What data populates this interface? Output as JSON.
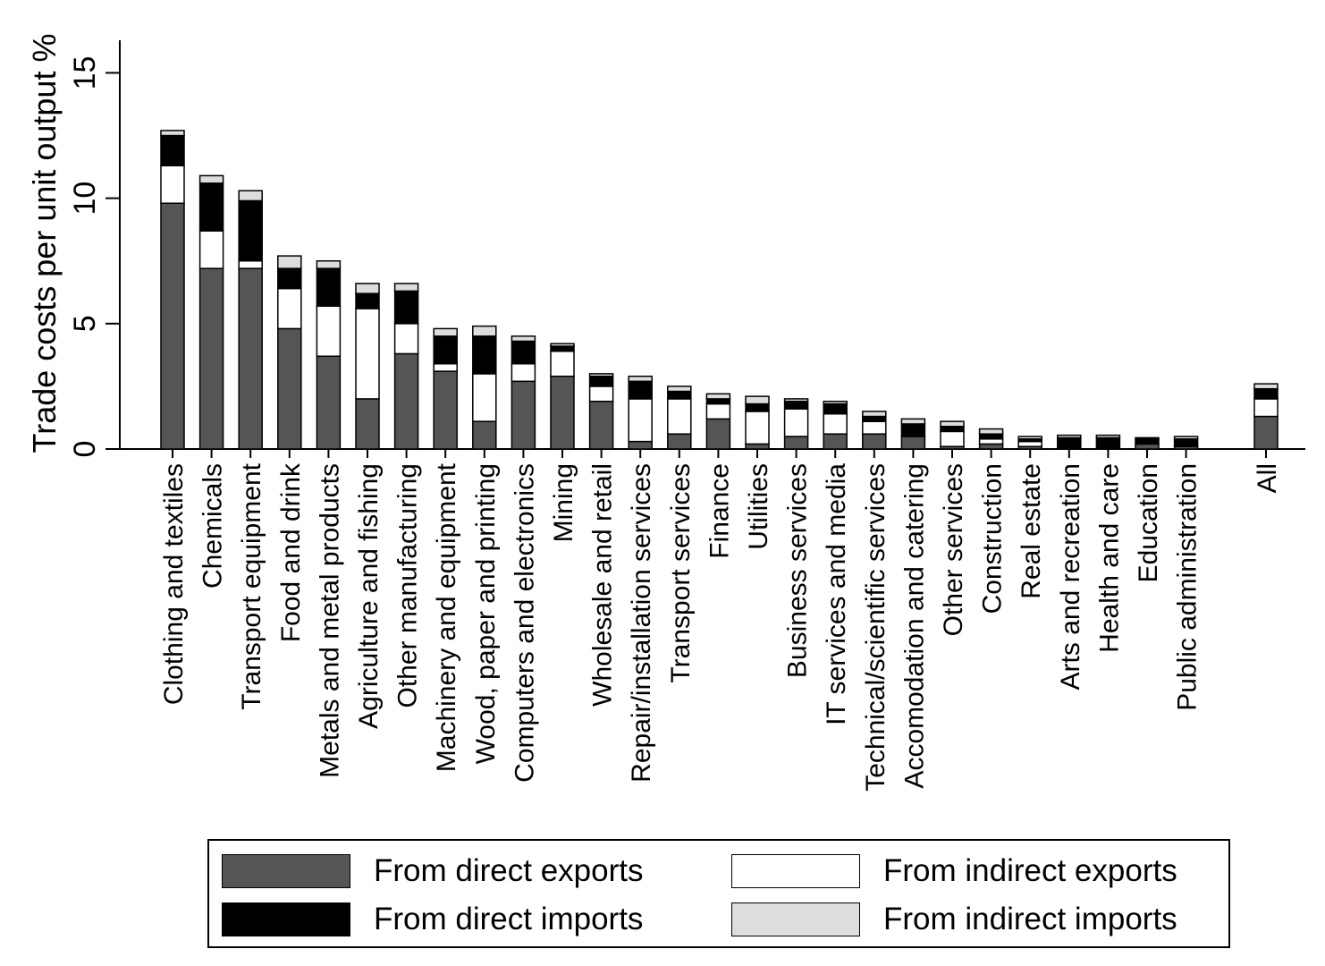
{
  "chart_data": {
    "type": "bar",
    "stacked": true,
    "ylabel": "Trade costs per unit output %",
    "xlabel": "",
    "ylim": [
      0,
      16.3
    ],
    "yticks": [
      0,
      5,
      10,
      15
    ],
    "grid": false,
    "legend_position": "bottom",
    "categories": [
      "Clothing and textiles",
      "Chemicals",
      "Transport equipment",
      "Food and drink",
      "Metals and metal products",
      "Agriculture and fishing",
      "Other manufacturing",
      "Machinery and equipment",
      "Wood, paper and printing",
      "Computers and electronics",
      "Mining",
      "Wholesale and retail",
      "Repair/installation services",
      "Transport services",
      "Finance",
      "Utilities",
      "Business services",
      "IT services and media",
      "Technical/scientific services",
      "Accomodation and catering",
      "Other services",
      "Construction",
      "Real estate",
      "Arts and recreation",
      "Health and care",
      "Education",
      "Public administration",
      "All"
    ],
    "series": [
      {
        "name": "From direct exports",
        "color": "#555555",
        "values": [
          9.8,
          7.2,
          7.2,
          4.8,
          3.7,
          2.0,
          3.8,
          3.1,
          1.1,
          2.7,
          2.9,
          1.9,
          0.3,
          0.6,
          1.2,
          0.2,
          0.5,
          0.6,
          0.6,
          0.5,
          0.1,
          0.2,
          0.1,
          0.05,
          0.05,
          0.2,
          0.1,
          1.3
        ]
      },
      {
        "name": "From indirect exports",
        "color": "#ffffff",
        "values": [
          1.5,
          1.5,
          0.3,
          1.6,
          2.0,
          3.6,
          1.2,
          0.3,
          1.9,
          0.7,
          1.0,
          0.6,
          1.7,
          1.4,
          0.6,
          1.3,
          1.1,
          0.8,
          0.5,
          0.0,
          0.6,
          0.2,
          0.2,
          0.0,
          0.0,
          0.0,
          0.0,
          0.7
        ]
      },
      {
        "name": "From direct imports",
        "color": "#000000",
        "values": [
          1.2,
          1.9,
          2.4,
          0.8,
          1.5,
          0.6,
          1.3,
          1.1,
          1.5,
          0.9,
          0.2,
          0.4,
          0.7,
          0.3,
          0.2,
          0.3,
          0.3,
          0.4,
          0.2,
          0.5,
          0.2,
          0.2,
          0.1,
          0.4,
          0.4,
          0.2,
          0.3,
          0.4
        ]
      },
      {
        "name": "From indirect imports",
        "color": "#dddddd",
        "values": [
          0.2,
          0.3,
          0.4,
          0.5,
          0.3,
          0.4,
          0.3,
          0.3,
          0.4,
          0.2,
          0.1,
          0.1,
          0.2,
          0.2,
          0.2,
          0.3,
          0.1,
          0.1,
          0.2,
          0.2,
          0.2,
          0.2,
          0.1,
          0.1,
          0.1,
          0.05,
          0.1,
          0.2
        ]
      }
    ]
  },
  "legend": {
    "items": [
      {
        "label": "From direct exports",
        "color": "#555555"
      },
      {
        "label": "From indirect exports",
        "color": "#ffffff"
      },
      {
        "label": "From direct imports",
        "color": "#000000"
      },
      {
        "label": "From indirect imports",
        "color": "#dddddd"
      }
    ]
  }
}
